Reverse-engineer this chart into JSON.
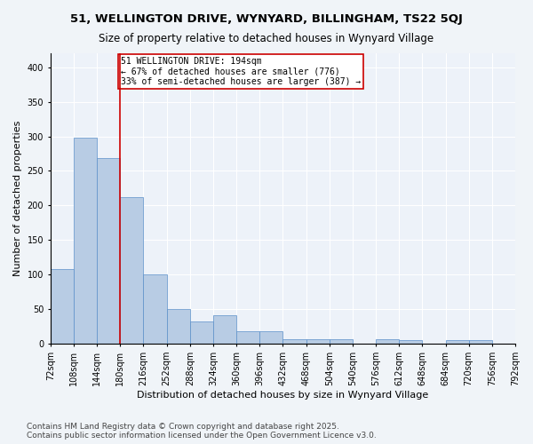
{
  "title_line1": "51, WELLINGTON DRIVE, WYNYARD, BILLINGHAM, TS22 5QJ",
  "title_line2": "Size of property relative to detached houses in Wynyard Village",
  "xlabel": "Distribution of detached houses by size in Wynyard Village",
  "ylabel": "Number of detached properties",
  "bar_color": "#b8cce4",
  "bar_edge_color": "#5b8fc9",
  "background_color": "#edf2f9",
  "grid_color": "#ffffff",
  "fig_background": "#f0f4f8",
  "vline_color": "#cc0000",
  "vline_x": 180,
  "annotation_text": "51 WELLINGTON DRIVE: 194sqm\n← 67% of detached houses are smaller (776)\n33% of semi-detached houses are larger (387) →",
  "annotation_box_color": "#ffffff",
  "annotation_box_edge": "#cc0000",
  "bins": [
    72,
    108,
    144,
    180,
    216,
    252,
    288,
    324,
    360,
    396,
    432,
    468,
    504,
    540,
    576,
    612,
    648,
    684,
    720,
    756,
    792
  ],
  "bin_labels": [
    "72sqm",
    "108sqm",
    "144sqm",
    "180sqm",
    "216sqm",
    "252sqm",
    "288sqm",
    "324sqm",
    "360sqm",
    "396sqm",
    "432sqm",
    "468sqm",
    "504sqm",
    "540sqm",
    "576sqm",
    "612sqm",
    "648sqm",
    "684sqm",
    "720sqm",
    "756sqm",
    "792sqm"
  ],
  "values": [
    108,
    298,
    268,
    212,
    100,
    51,
    32,
    41,
    18,
    18,
    7,
    7,
    7,
    0,
    7,
    5,
    0,
    5,
    5,
    0,
    2
  ],
  "ylim": [
    0,
    420
  ],
  "yticks": [
    0,
    50,
    100,
    150,
    200,
    250,
    300,
    350,
    400
  ],
  "footer_text": "Contains HM Land Registry data © Crown copyright and database right 2025.\nContains public sector information licensed under the Open Government Licence v3.0.",
  "title_fontsize": 9.5,
  "subtitle_fontsize": 8.5,
  "axis_label_fontsize": 8,
  "tick_fontsize": 7,
  "footer_fontsize": 6.5,
  "annotation_fontsize": 7
}
